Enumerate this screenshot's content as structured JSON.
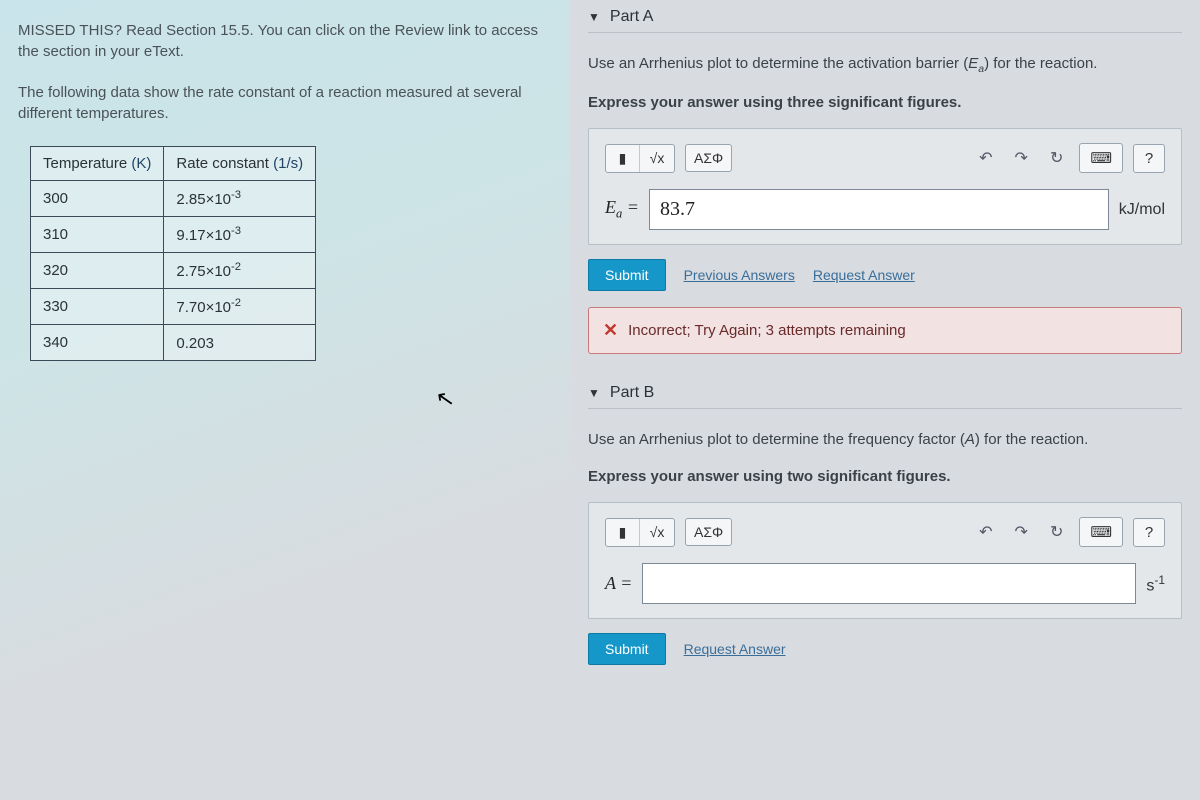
{
  "left": {
    "missed_text": "MISSED THIS? Read Section 15.5. You can click on the Review link to access the section in your eText.",
    "intro_text": "The following data show the rate constant of a reaction measured at several different temperatures.",
    "table": {
      "col1_label": "Temperature",
      "col1_unit": "(K)",
      "col2_label": "Rate constant",
      "col2_unit": "(1/s)",
      "rows": [
        {
          "t": "300",
          "k_base": "2.85×10",
          "k_exp": "-3"
        },
        {
          "t": "310",
          "k_base": "9.17×10",
          "k_exp": "-3"
        },
        {
          "t": "320",
          "k_base": "2.75×10",
          "k_exp": "-2"
        },
        {
          "t": "330",
          "k_base": "7.70×10",
          "k_exp": "-2"
        },
        {
          "t": "340",
          "k_base": "0.203",
          "k_exp": ""
        }
      ]
    }
  },
  "partA": {
    "header": "Part A",
    "prompt_pre": "Use an Arrhenius plot to determine the activation barrier (",
    "prompt_var": "E",
    "prompt_varsub": "a",
    "prompt_post": ") for the reaction.",
    "instruct": "Express your answer using three significant figures.",
    "toolbar": {
      "format": "▮",
      "sqrt": "√x",
      "greek": "ΑΣΦ",
      "undo": "↶",
      "redo": "↷",
      "reset": "↻",
      "keyboard": "⌨",
      "help": "?"
    },
    "var_label": "E",
    "var_sub": "a",
    "equals": "=",
    "value": "83.7",
    "unit": "kJ/mol",
    "submit": "Submit",
    "prev_answers": "Previous Answers",
    "request_answer": "Request Answer",
    "feedback": "Incorrect; Try Again; 3 attempts remaining"
  },
  "partB": {
    "header": "Part B",
    "prompt_pre": "Use an Arrhenius plot to determine the frequency factor (",
    "prompt_var": "A",
    "prompt_post": ") for the reaction.",
    "instruct": "Express your answer using two significant figures.",
    "var_label": "A",
    "equals": "=",
    "value": "",
    "unit_base": "s",
    "unit_exp": "-1",
    "submit": "Submit",
    "request_answer": "Request Answer"
  }
}
